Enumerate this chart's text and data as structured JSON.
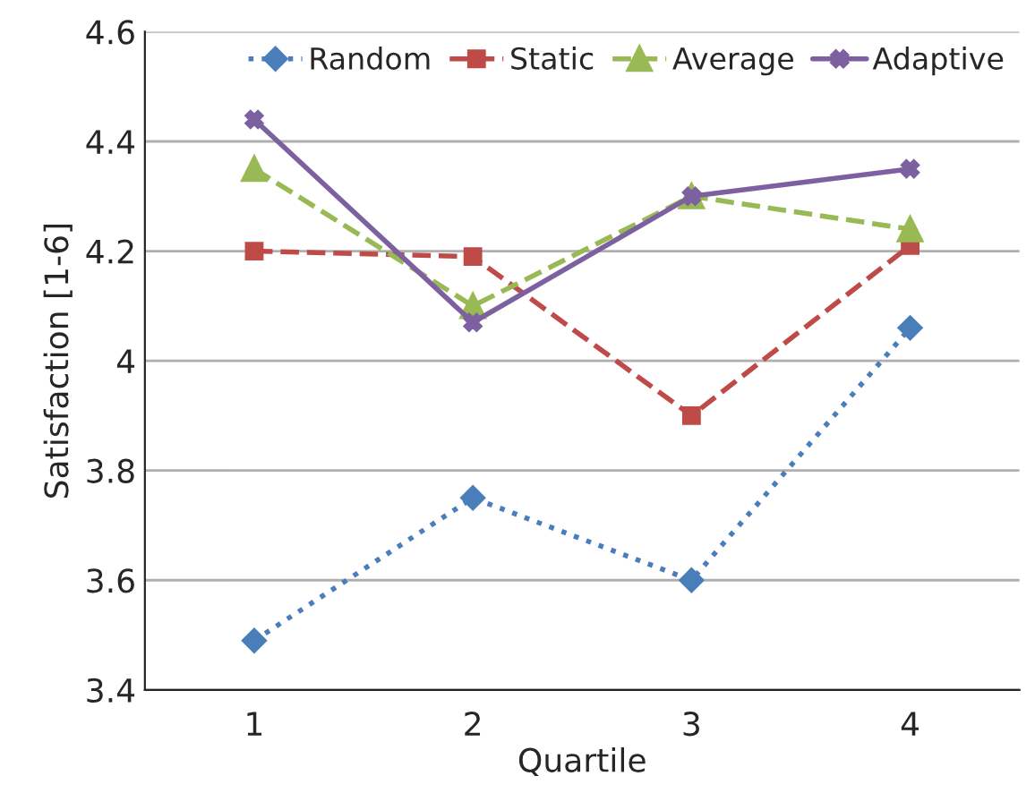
{
  "chart_data": {
    "type": "line",
    "xlabel": "Quartile",
    "ylabel": "Satisfaction [1-6]",
    "categories": [
      "1",
      "2",
      "3",
      "4"
    ],
    "series": [
      {
        "name": "Random",
        "color": "#4a7ebb",
        "marker": "diamond",
        "line_style": "dotted",
        "values": [
          3.49,
          3.75,
          3.6,
          4.06
        ]
      },
      {
        "name": "Static",
        "color": "#be4b48",
        "marker": "square",
        "line_style": "dashed",
        "values": [
          4.2,
          4.19,
          3.9,
          4.21
        ]
      },
      {
        "name": "Average",
        "color": "#98b954",
        "marker": "triangle",
        "line_style": "dashed",
        "values": [
          4.35,
          4.1,
          4.3,
          4.24
        ]
      },
      {
        "name": "Adaptive",
        "color": "#7d60a0",
        "marker": "cross",
        "line_style": "solid",
        "values": [
          4.44,
          4.07,
          4.3,
          4.35
        ]
      }
    ],
    "ylim": [
      3.4,
      4.6
    ],
    "yticks": [
      3.4,
      3.6,
      3.8,
      4,
      4.2,
      4.4,
      4.6
    ],
    "grid": "y",
    "legend": "top right"
  }
}
